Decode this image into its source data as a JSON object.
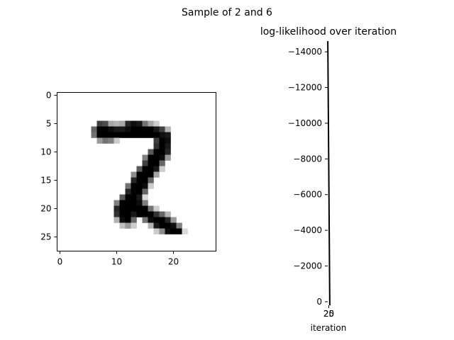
{
  "figure": {
    "suptitle": "Sample of 2 and 6"
  },
  "chart_data": [
    {
      "type": "heatmap",
      "title": "",
      "colormap": "gray_r",
      "shape": [
        28,
        28
      ],
      "xlim": [
        -0.5,
        27.5
      ],
      "ylim": [
        27.5,
        -0.5
      ],
      "xticks": [
        0,
        10,
        20
      ],
      "yticks": [
        0,
        5,
        10,
        15,
        20,
        25
      ],
      "pixels": [
        [
          5,
          7,
          0.75
        ],
        [
          5,
          8,
          0.7
        ],
        [
          5,
          9,
          0.35
        ],
        [
          5,
          10,
          0.3
        ],
        [
          5,
          11,
          0.35
        ],
        [
          5,
          12,
          0.85
        ],
        [
          5,
          13,
          0.95
        ],
        [
          5,
          14,
          0.9
        ],
        [
          5,
          15,
          0.55
        ],
        [
          5,
          16,
          0.35
        ],
        [
          5,
          17,
          0.2
        ],
        [
          6,
          6,
          0.6
        ],
        [
          6,
          7,
          1
        ],
        [
          6,
          8,
          1
        ],
        [
          6,
          9,
          0.95
        ],
        [
          6,
          10,
          0.9
        ],
        [
          6,
          11,
          0.9
        ],
        [
          6,
          12,
          0.95
        ],
        [
          6,
          13,
          1
        ],
        [
          6,
          14,
          1
        ],
        [
          6,
          15,
          1
        ],
        [
          6,
          16,
          1
        ],
        [
          6,
          17,
          0.9
        ],
        [
          6,
          18,
          0.75
        ],
        [
          6,
          19,
          0.3
        ],
        [
          7,
          6,
          0.55
        ],
        [
          7,
          7,
          1
        ],
        [
          7,
          8,
          1
        ],
        [
          7,
          9,
          1
        ],
        [
          7,
          10,
          1
        ],
        [
          7,
          11,
          1
        ],
        [
          7,
          12,
          1
        ],
        [
          7,
          13,
          1
        ],
        [
          7,
          14,
          1
        ],
        [
          7,
          15,
          1
        ],
        [
          7,
          16,
          1
        ],
        [
          7,
          17,
          1
        ],
        [
          7,
          18,
          0.95
        ],
        [
          7,
          19,
          0.9
        ],
        [
          8,
          7,
          0.4
        ],
        [
          8,
          8,
          0.55
        ],
        [
          8,
          9,
          0.5
        ],
        [
          8,
          10,
          0.2
        ],
        [
          8,
          17,
          0.75
        ],
        [
          8,
          18,
          1
        ],
        [
          8,
          19,
          0.95
        ],
        [
          9,
          17,
          0.8
        ],
        [
          9,
          18,
          1
        ],
        [
          9,
          19,
          0.9
        ],
        [
          10,
          16,
          0.65
        ],
        [
          10,
          17,
          1
        ],
        [
          10,
          18,
          1
        ],
        [
          10,
          19,
          0.85
        ],
        [
          11,
          15,
          0.5
        ],
        [
          11,
          16,
          1
        ],
        [
          11,
          17,
          1
        ],
        [
          11,
          18,
          0.95
        ],
        [
          11,
          19,
          0.4
        ],
        [
          12,
          15,
          0.75
        ],
        [
          12,
          16,
          1
        ],
        [
          12,
          17,
          1
        ],
        [
          12,
          18,
          0.6
        ],
        [
          13,
          14,
          0.65
        ],
        [
          13,
          15,
          1
        ],
        [
          13,
          16,
          1
        ],
        [
          13,
          17,
          0.9
        ],
        [
          13,
          18,
          0.2
        ],
        [
          14,
          13,
          0.45
        ],
        [
          14,
          14,
          1
        ],
        [
          14,
          15,
          1
        ],
        [
          14,
          16,
          1
        ],
        [
          14,
          17,
          0.35
        ],
        [
          15,
          13,
          0.85
        ],
        [
          15,
          14,
          1
        ],
        [
          15,
          15,
          1
        ],
        [
          15,
          16,
          0.6
        ],
        [
          16,
          12,
          0.55
        ],
        [
          16,
          13,
          1
        ],
        [
          16,
          14,
          1
        ],
        [
          16,
          15,
          0.95
        ],
        [
          16,
          16,
          0.2
        ],
        [
          17,
          12,
          0.85
        ],
        [
          17,
          13,
          1
        ],
        [
          17,
          14,
          1
        ],
        [
          17,
          15,
          0.6
        ],
        [
          18,
          11,
          0.65
        ],
        [
          18,
          12,
          1
        ],
        [
          18,
          13,
          1
        ],
        [
          18,
          14,
          0.9
        ],
        [
          18,
          15,
          0.15
        ],
        [
          19,
          10,
          0.5
        ],
        [
          19,
          11,
          1
        ],
        [
          19,
          12,
          1
        ],
        [
          19,
          13,
          1
        ],
        [
          19,
          14,
          0.95
        ],
        [
          19,
          15,
          0.5
        ],
        [
          20,
          10,
          0.85
        ],
        [
          20,
          11,
          1
        ],
        [
          20,
          12,
          1
        ],
        [
          20,
          13,
          1
        ],
        [
          20,
          14,
          1
        ],
        [
          20,
          15,
          1
        ],
        [
          20,
          16,
          0.55
        ],
        [
          20,
          17,
          0.2
        ],
        [
          21,
          10,
          0.8
        ],
        [
          21,
          11,
          1
        ],
        [
          21,
          12,
          1
        ],
        [
          21,
          13,
          0.9
        ],
        [
          21,
          14,
          1
        ],
        [
          21,
          15,
          1
        ],
        [
          21,
          16,
          1
        ],
        [
          21,
          17,
          0.8
        ],
        [
          21,
          18,
          0.6
        ],
        [
          21,
          19,
          0.3
        ],
        [
          22,
          10,
          0.3
        ],
        [
          22,
          11,
          0.95
        ],
        [
          22,
          12,
          1
        ],
        [
          22,
          13,
          0.6
        ],
        [
          22,
          15,
          0.55
        ],
        [
          22,
          16,
          0.95
        ],
        [
          22,
          17,
          1
        ],
        [
          22,
          18,
          1
        ],
        [
          22,
          19,
          0.85
        ],
        [
          22,
          20,
          0.4
        ],
        [
          23,
          11,
          0.25
        ],
        [
          23,
          12,
          0.4
        ],
        [
          23,
          13,
          0.2
        ],
        [
          23,
          16,
          0.3
        ],
        [
          23,
          17,
          0.9
        ],
        [
          23,
          18,
          1
        ],
        [
          23,
          19,
          1
        ],
        [
          23,
          20,
          0.95
        ],
        [
          23,
          21,
          0.5
        ],
        [
          24,
          17,
          0.2
        ],
        [
          24,
          18,
          0.45
        ],
        [
          24,
          19,
          0.95
        ],
        [
          24,
          20,
          1
        ],
        [
          24,
          21,
          1
        ],
        [
          24,
          22,
          0.15
        ]
      ]
    },
    {
      "type": "line",
      "title": "log-likelihood over iteration",
      "xlabel": "iteration",
      "ylabel": "",
      "xlim": [
        19.8,
        25.2
      ],
      "ylim": [
        -14600,
        200
      ],
      "y_inverted": true,
      "xtick_labels": [
        "20",
        "25"
      ],
      "ytick_values": [
        0,
        -2000,
        -4000,
        -6000,
        -8000,
        -10000,
        -12000,
        -14000
      ],
      "ytick_labels": [
        "0",
        "−2000",
        "−4000",
        "−6000",
        "−8000",
        "−10000",
        "−12000",
        "−14000"
      ],
      "series": [
        {
          "x": [
            20,
            25
          ],
          "y": [
            -14600,
            200
          ],
          "color": "#000000"
        }
      ],
      "grid": false
    }
  ]
}
